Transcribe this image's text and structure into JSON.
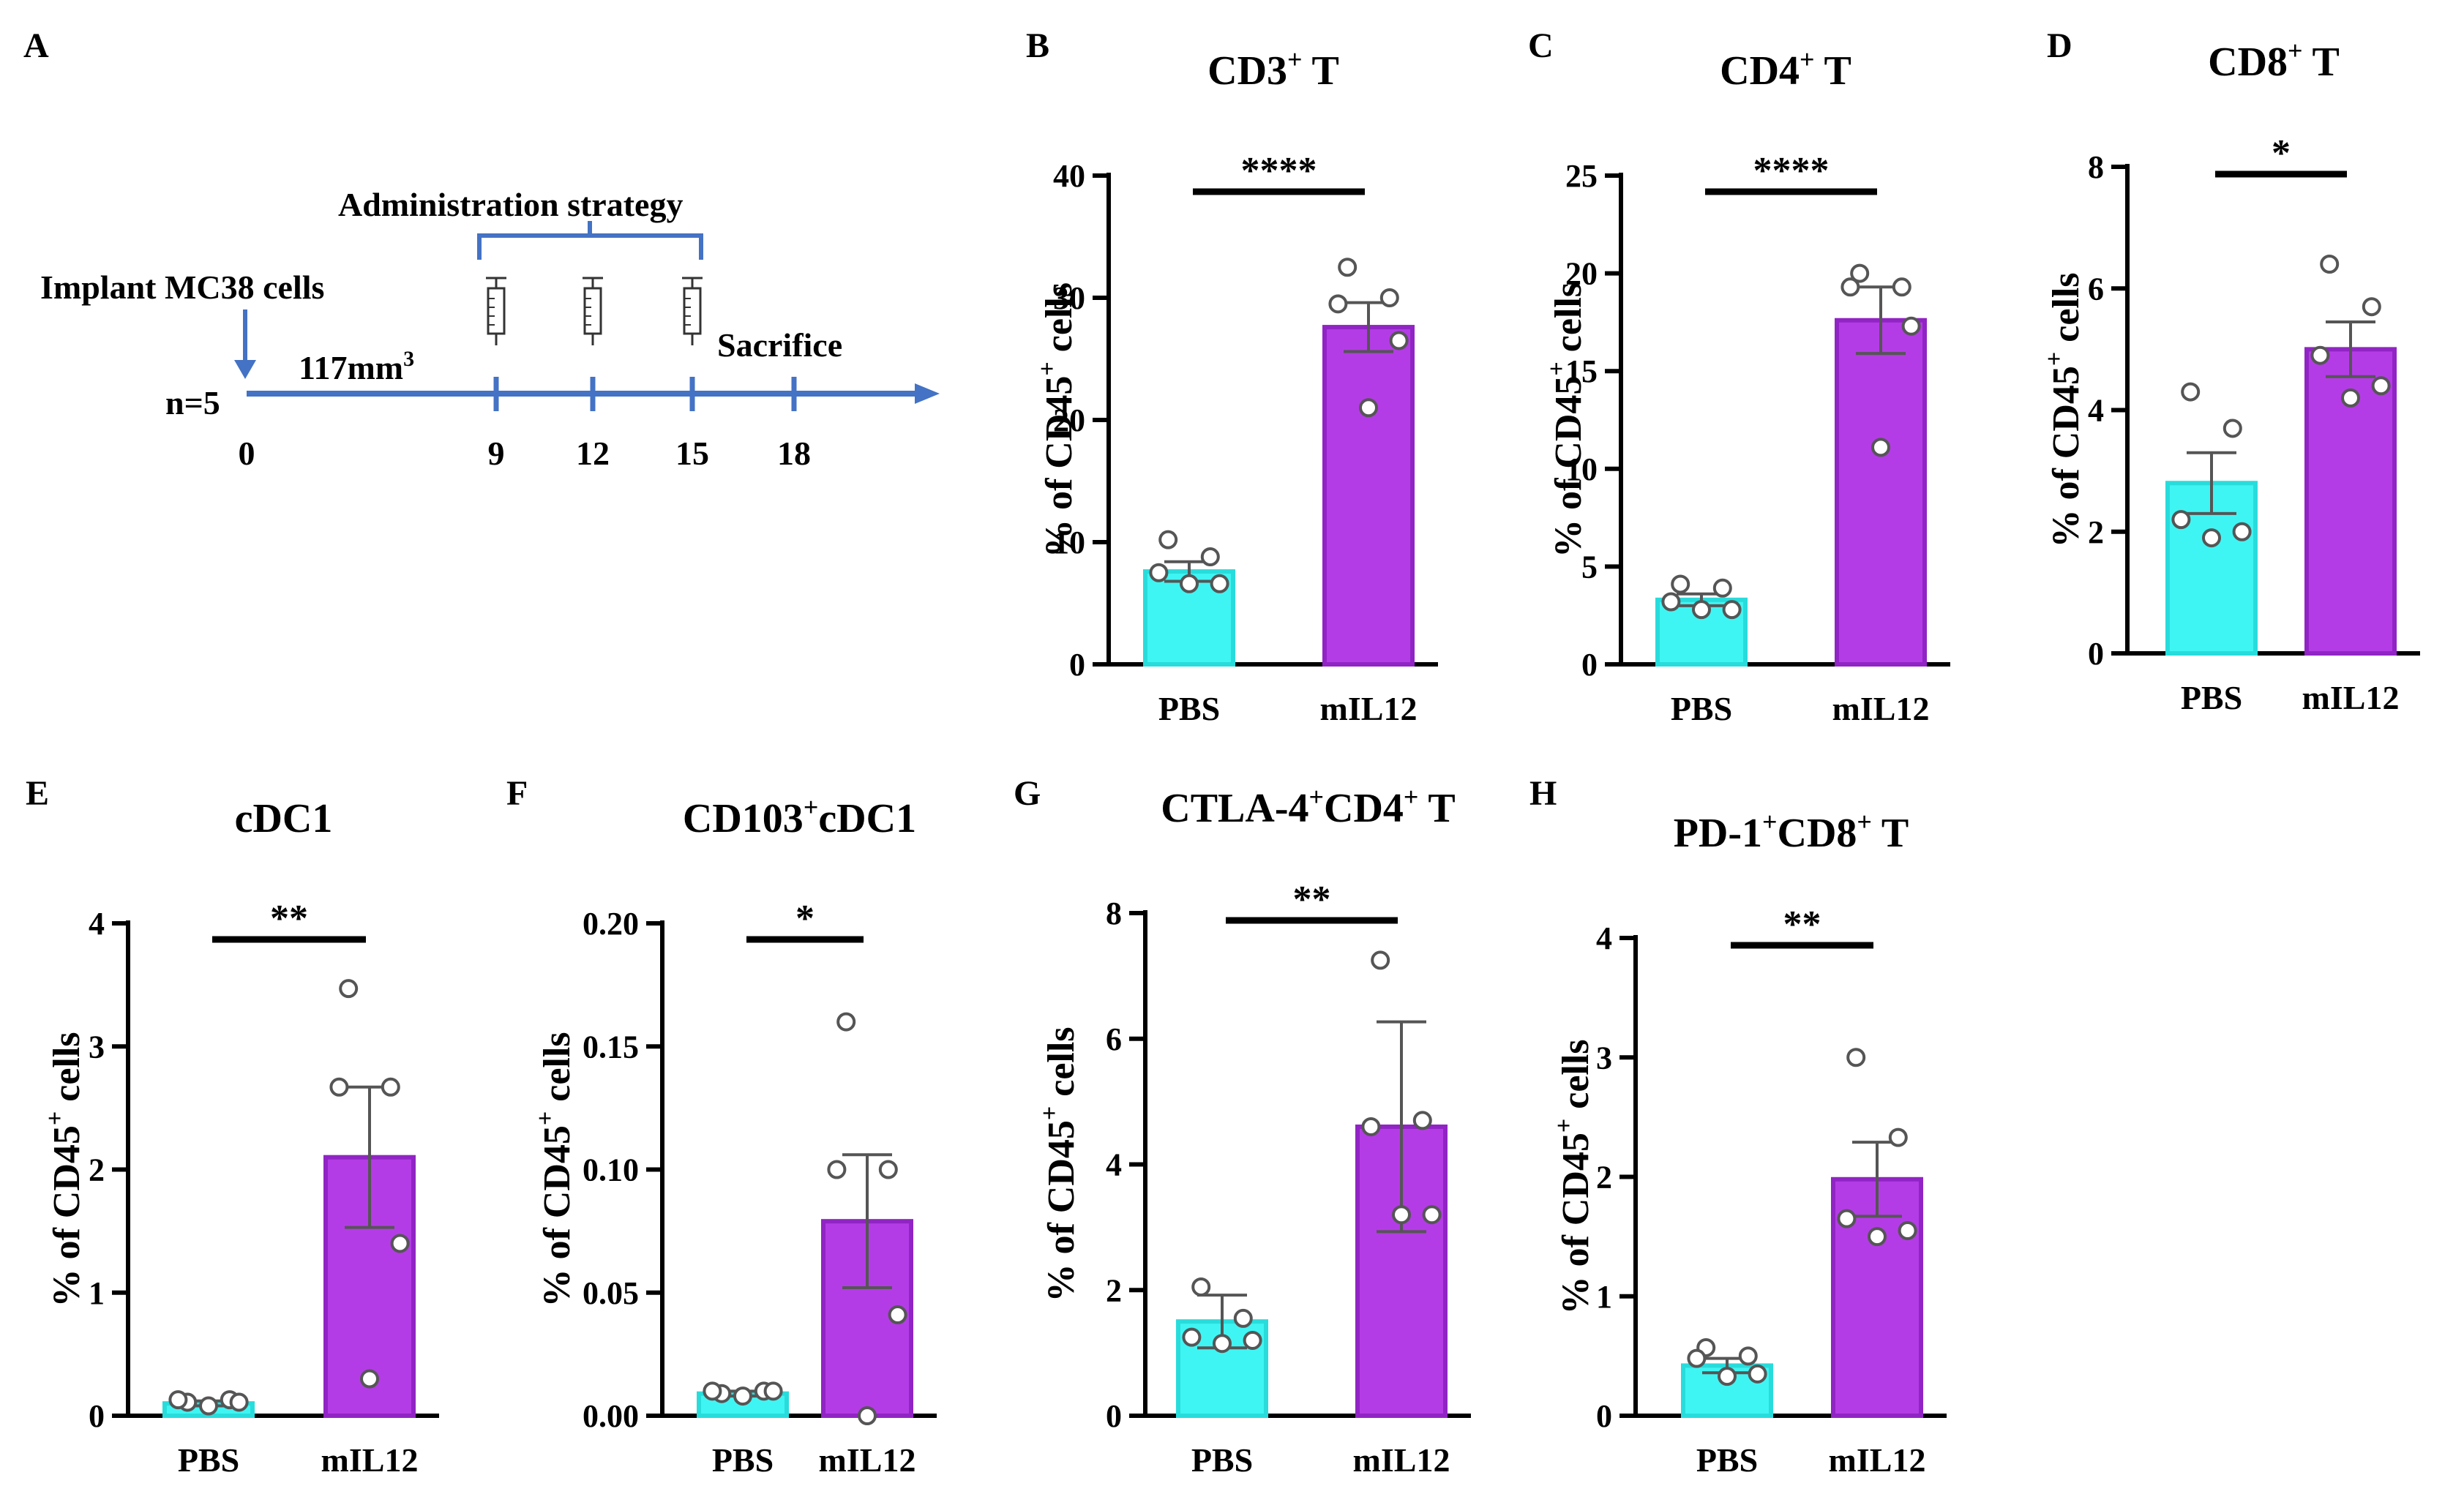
{
  "figure": {
    "panels": [
      "A",
      "B",
      "C",
      "D",
      "E",
      "F",
      "G",
      "H"
    ]
  },
  "timeline": {
    "panel_label": "A",
    "admin_label": "Administration strategy",
    "implant_label": "Implant MC38 cells",
    "n_label": "n=5",
    "volume_label": "117mm",
    "volume_sup": "3",
    "sacrifice_label": "Sacrifice",
    "days": [
      "0",
      "9",
      "12",
      "15",
      "18"
    ],
    "injection_days": [
      9,
      12,
      15
    ],
    "line_color": "#4472C4"
  },
  "colors": {
    "pbs_fill": "#3FF5F3",
    "pbs_stroke": "#28DCDC",
    "mil12_fill": "#B43CE6",
    "mil12_stroke": "#9124C4"
  },
  "chart_data": [
    {
      "panel": "B",
      "type": "bar",
      "title_main": "CD3",
      "title_sup": "+",
      "title_rest": " T",
      "ylabel_pre": "% of CD45",
      "ylabel_sup": "+",
      "ylabel_post": " cells",
      "categories": [
        "PBS",
        "mIL12"
      ],
      "ylim": [
        0,
        40
      ],
      "yticks": [
        "0",
        "10",
        "20",
        "30",
        "40"
      ],
      "means": [
        7.6,
        27.6
      ],
      "sems": [
        0.8,
        2.0
      ],
      "points": [
        [
          10.2,
          8.8,
          7.5,
          6.6,
          6.6
        ],
        [
          32.5,
          30.0,
          29.5,
          26.5,
          21.0
        ]
      ],
      "significance": "****"
    },
    {
      "panel": "C",
      "type": "bar",
      "title_main": "CD4",
      "title_sup": "+",
      "title_rest": " T",
      "ylabel_pre": "% of CD45",
      "ylabel_sup": "+",
      "ylabel_post": " cells",
      "categories": [
        "PBS",
        "mIL12"
      ],
      "ylim": [
        0,
        25
      ],
      "yticks": [
        "0",
        "5",
        "10",
        "15",
        "20",
        "25"
      ],
      "means": [
        3.3,
        17.6
      ],
      "sems": [
        0.3,
        1.7
      ],
      "points": [
        [
          4.1,
          3.9,
          3.2,
          2.8,
          2.8
        ],
        [
          20.0,
          19.3,
          19.3,
          17.3,
          11.1
        ]
      ],
      "significance": "****"
    },
    {
      "panel": "D",
      "type": "bar",
      "title_main": "CD8",
      "title_sup": "+",
      "title_rest": " T",
      "ylabel_pre": "% of CD45",
      "ylabel_sup": "+",
      "ylabel_post": " cells",
      "categories": [
        "PBS",
        "mIL12"
      ],
      "ylim": [
        0,
        8
      ],
      "yticks": [
        "0",
        "2",
        "4",
        "6",
        "8"
      ],
      "means": [
        2.8,
        5.0
      ],
      "sems": [
        0.5,
        0.45
      ],
      "points": [
        [
          4.3,
          3.7,
          2.2,
          2.0,
          1.9
        ],
        [
          6.4,
          5.7,
          4.9,
          4.4,
          4.2
        ]
      ],
      "significance": "*"
    },
    {
      "panel": "E",
      "type": "bar",
      "title_main": "cDC1",
      "title_sup": "",
      "title_rest": "",
      "ylabel_pre": "% of CD45",
      "ylabel_sup": "+",
      "ylabel_post": " cells",
      "categories": [
        "PBS",
        "mIL12"
      ],
      "ylim": [
        0,
        4
      ],
      "yticks": [
        "0",
        "1",
        "2",
        "3",
        "4"
      ],
      "means": [
        0.1,
        2.1
      ],
      "sems": [
        0.02,
        0.57
      ],
      "points": [
        [
          0.11,
          0.13,
          0.13,
          0.11,
          0.08
        ],
        [
          3.47,
          2.67,
          2.67,
          1.4,
          0.3
        ]
      ],
      "significance": "**"
    },
    {
      "panel": "F",
      "type": "bar",
      "title_main": "CD103",
      "title_sup": "+",
      "title_rest": "cDC1",
      "ylabel_pre": "% of CD45",
      "ylabel_sup": "+",
      "ylabel_post": " cells",
      "categories": [
        "PBS",
        "mIL12"
      ],
      "ylim": [
        0,
        0.2
      ],
      "yticks": [
        "0.00",
        "0.05",
        "0.10",
        "0.15",
        "0.20"
      ],
      "means": [
        0.009,
        0.079
      ],
      "sems": [
        0.001,
        0.027
      ],
      "points": [
        [
          0.009,
          0.01,
          0.01,
          0.01,
          0.008
        ],
        [
          0.16,
          0.1,
          0.1,
          0.041,
          0.0
        ]
      ],
      "significance": "*"
    },
    {
      "panel": "G",
      "type": "bar",
      "title_main": "CTLA-4",
      "title_sup": "+",
      "title_rest": "CD4",
      "title_sup2": "+",
      "title_rest2": " T",
      "ylabel_pre": "% of CD45",
      "ylabel_sup": "+",
      "ylabel_post": " cells",
      "categories": [
        "PBS",
        "mIL12"
      ],
      "ylim": [
        0,
        8
      ],
      "yticks": [
        "0",
        "2",
        "4",
        "6",
        "8"
      ],
      "means": [
        1.5,
        4.6
      ],
      "sems": [
        0.42,
        1.67
      ],
      "points": [
        [
          2.05,
          1.55,
          1.25,
          1.2,
          1.15
        ],
        [
          7.25,
          4.7,
          4.6,
          3.2,
          3.2
        ]
      ],
      "significance": "**"
    },
    {
      "panel": "H",
      "type": "bar",
      "title_main": "PD-1",
      "title_sup": "+",
      "title_rest": "CD8",
      "title_sup2": "+",
      "title_rest2": " T",
      "ylabel_pre": "% of CD45",
      "ylabel_sup": "+",
      "ylabel_post": " cells",
      "categories": [
        "PBS",
        "mIL12"
      ],
      "ylim": [
        0,
        4
      ],
      "yticks": [
        "0",
        "1",
        "2",
        "3",
        "4"
      ],
      "means": [
        0.42,
        1.98
      ],
      "sems": [
        0.06,
        0.31
      ],
      "points": [
        [
          0.57,
          0.5,
          0.48,
          0.35,
          0.33
        ],
        [
          3.0,
          2.33,
          1.65,
          1.55,
          1.5
        ]
      ],
      "significance": "**"
    }
  ]
}
